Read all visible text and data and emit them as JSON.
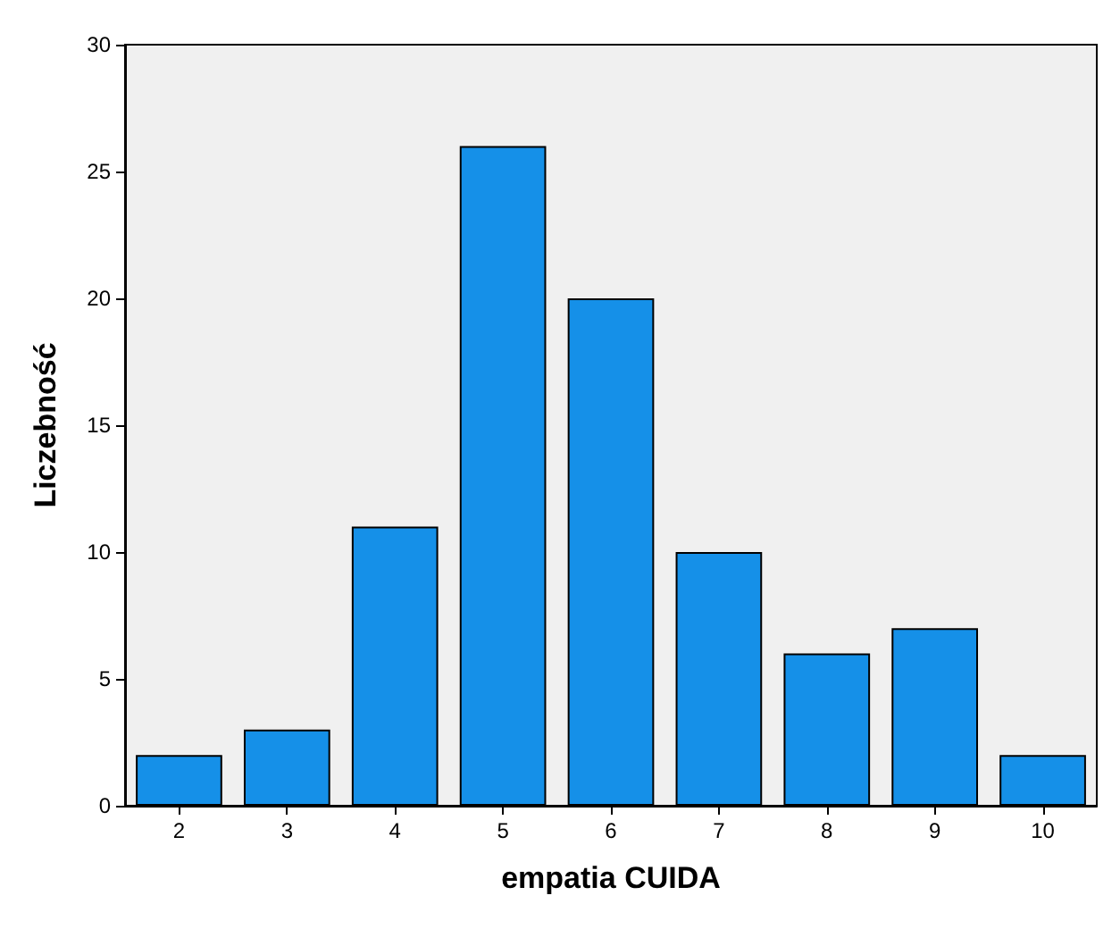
{
  "chart_data": {
    "type": "bar",
    "xlabel": "empatia CUIDA",
    "ylabel": "Liczebność",
    "categories": [
      "2",
      "3",
      "4",
      "5",
      "6",
      "7",
      "8",
      "9",
      "10"
    ],
    "values": [
      2,
      3,
      11,
      26,
      20,
      10,
      6,
      7,
      2
    ],
    "color": "#1590e8",
    "ylim": [
      0,
      30
    ],
    "yticks": [
      0,
      5,
      10,
      15,
      20,
      25,
      30
    ],
    "grid": false
  }
}
